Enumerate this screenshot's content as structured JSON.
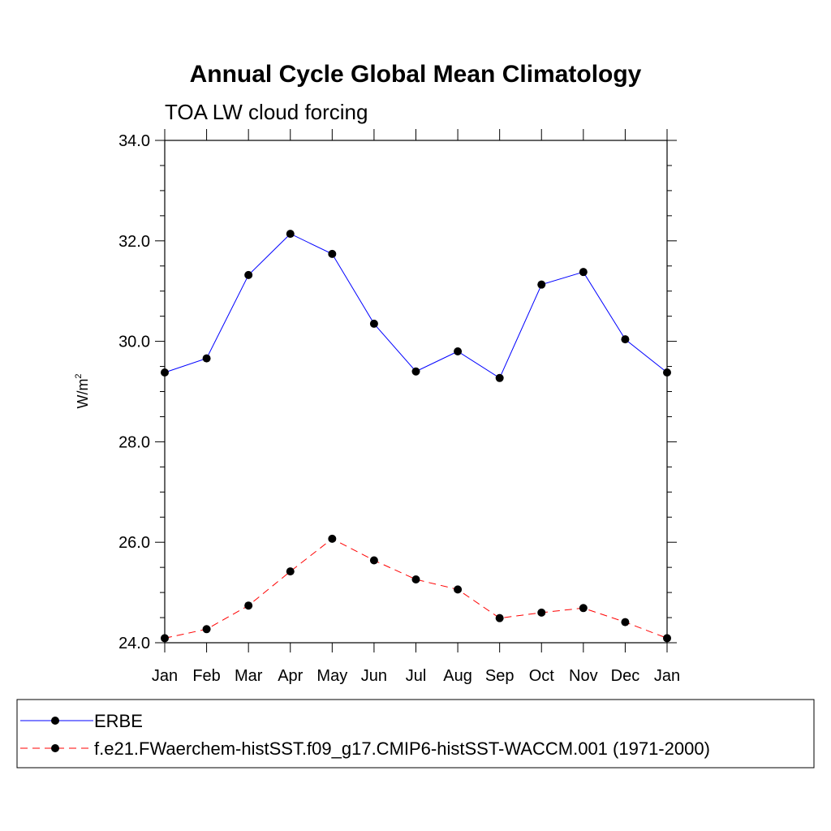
{
  "chart_data": {
    "type": "line",
    "title": "Annual Cycle Global Mean Climatology",
    "subtitle": "TOA LW cloud forcing",
    "ylabel": "W/m",
    "ylabel_superscript": "2",
    "categories": [
      "Jan",
      "Feb",
      "Mar",
      "Apr",
      "May",
      "Jun",
      "Jul",
      "Aug",
      "Sep",
      "Oct",
      "Nov",
      "Dec",
      "Jan"
    ],
    "ylim": [
      24.0,
      34.0
    ],
    "y_major_ticks": [
      "24.0",
      "26.0",
      "28.0",
      "30.0",
      "32.0",
      "34.0"
    ],
    "grid": false,
    "legend_position": "bottom",
    "series": [
      {
        "name": "ERBE",
        "color": "#0000ff",
        "dash": "solid",
        "values": [
          29.38,
          29.66,
          31.32,
          32.14,
          31.74,
          30.35,
          29.4,
          29.8,
          29.27,
          31.13,
          31.38,
          30.04,
          29.38
        ]
      },
      {
        "name": "f.e21.FWaerchem-histSST.f09_g17.CMIP6-histSST-WACCM.001 (1971-2000)",
        "color": "#ff0000",
        "dash": "dashed",
        "values": [
          24.09,
          24.27,
          24.74,
          25.42,
          26.07,
          25.64,
          25.26,
          25.06,
          24.49,
          24.6,
          24.69,
          24.41,
          24.09
        ]
      }
    ]
  }
}
